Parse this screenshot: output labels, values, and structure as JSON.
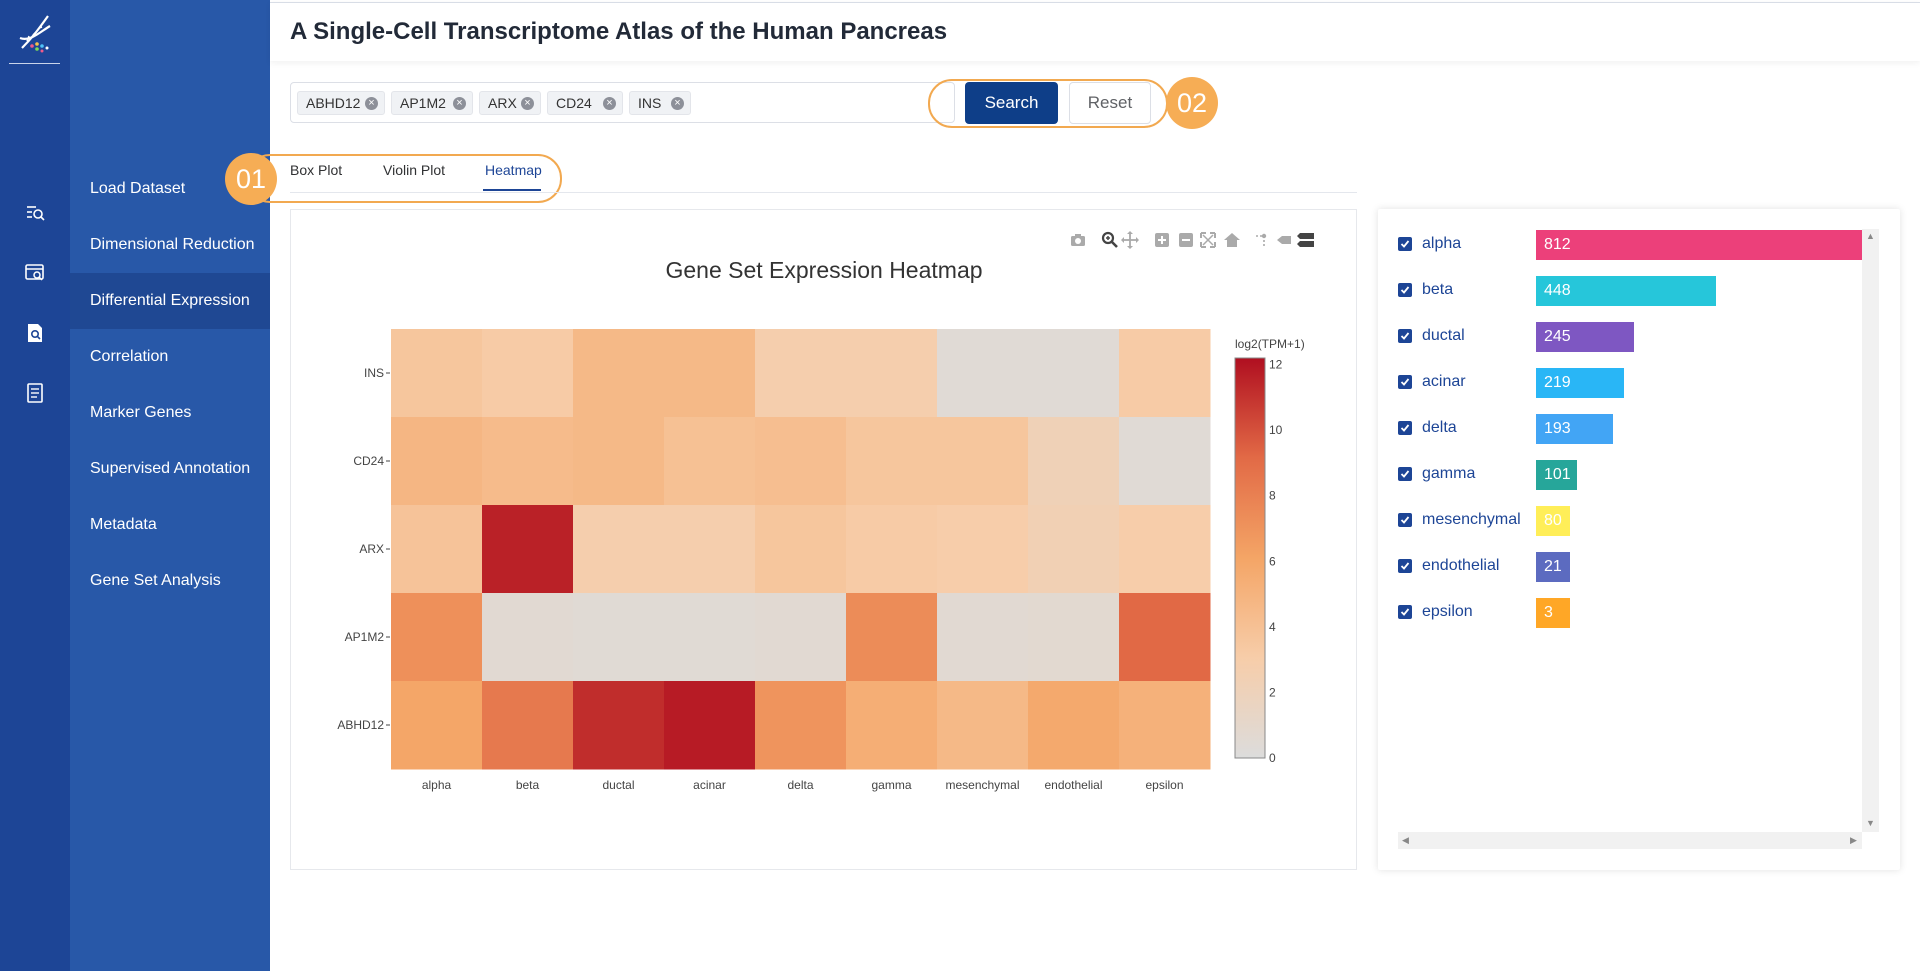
{
  "app": {
    "title": "A Single-Cell Transcriptome Atlas of the Human Pancreas"
  },
  "rail": {
    "icons": [
      "dna-logo-icon",
      "query-list-icon",
      "browse-search-icon",
      "file-search-icon",
      "document-icon"
    ]
  },
  "nav": {
    "items": [
      {
        "label": "Load Dataset",
        "active": false
      },
      {
        "label": "Dimensional Reduction",
        "active": false
      },
      {
        "label": "Differential Expression",
        "active": true
      },
      {
        "label": "Correlation",
        "active": false
      },
      {
        "label": "Marker Genes",
        "active": false
      },
      {
        "label": "Supervised Annotation",
        "active": false
      },
      {
        "label": "Metadata",
        "active": false
      },
      {
        "label": "Gene Set Analysis",
        "active": false
      }
    ]
  },
  "search": {
    "tags": [
      "ABHD12",
      "AP1M2",
      "ARX",
      "CD24",
      "INS"
    ],
    "search_label": "Search",
    "reset_label": "Reset"
  },
  "callouts": {
    "tabs_badge": "01",
    "search_badge": "02"
  },
  "tabs": [
    {
      "label": "Box Plot",
      "active": false
    },
    {
      "label": "Violin Plot",
      "active": false
    },
    {
      "label": "Heatmap",
      "active": true
    }
  ],
  "modebar": {
    "icons": [
      "camera-icon",
      "zoom-icon",
      "pan-icon",
      "zoom-in-icon",
      "zoom-out-icon",
      "autoscale-icon",
      "home-icon",
      "spike-lines-icon",
      "hover-closest-icon",
      "hover-compare-icon"
    ]
  },
  "chart_data": {
    "type": "heatmap",
    "title": "Gene Set Expression Heatmap",
    "x": [
      "alpha",
      "beta",
      "ductal",
      "acinar",
      "delta",
      "gamma",
      "mesenchymal",
      "endothelial",
      "epsilon"
    ],
    "y": [
      "INS",
      "CD24",
      "ARX",
      "AP1M2",
      "ABHD12"
    ],
    "z": [
      [
        3.6,
        3.2,
        4.6,
        4.6,
        2.8,
        2.8,
        0.4,
        0.4,
        3.2
      ],
      [
        4.8,
        4.4,
        4.6,
        4.0,
        4.2,
        3.6,
        3.6,
        2.2,
        0.4
      ],
      [
        3.8,
        11.6,
        2.8,
        2.8,
        3.6,
        3.2,
        3.0,
        2.4,
        3.0
      ],
      [
        7.2,
        0.6,
        0.5,
        0.5,
        0.6,
        7.4,
        0.6,
        0.7,
        9.2
      ],
      [
        6.0,
        8.4,
        11.2,
        11.8,
        7.0,
        5.4,
        4.6,
        5.8,
        5.2
      ]
    ],
    "colorbar": {
      "title": "log2(TPM+1)",
      "ticks": [
        0,
        2,
        4,
        6,
        8,
        10,
        12
      ],
      "range": [
        0,
        12.2
      ]
    },
    "colorscale": [
      "#dcdcdc",
      "#f7cda9",
      "#f4a566",
      "#e26a46",
      "#b00f20"
    ]
  },
  "cell_counts": {
    "type": "bar",
    "categories": [
      "alpha",
      "beta",
      "ductal",
      "acinar",
      "delta",
      "gamma",
      "mesenchymal",
      "endothelial",
      "epsilon"
    ],
    "values": [
      812,
      448,
      245,
      219,
      193,
      101,
      80,
      21,
      3
    ],
    "checked": [
      true,
      true,
      true,
      true,
      true,
      true,
      true,
      true,
      true
    ],
    "colors": [
      "#ec407a",
      "#26c6da",
      "#7e57c2",
      "#29b6f6",
      "#42a5f5",
      "#26a69a",
      "#ffee58",
      "#5c6bc0",
      "#ffa726"
    ]
  }
}
